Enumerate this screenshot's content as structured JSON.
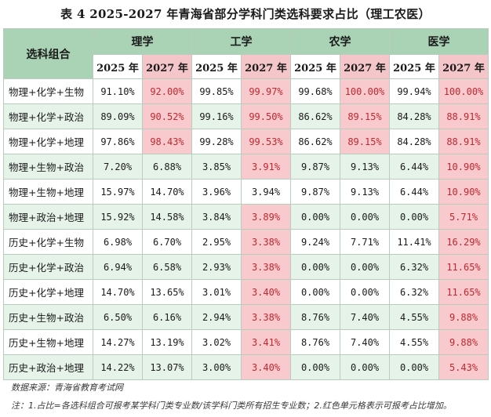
{
  "title": "表 4  2025-2027 年青海省部分学科门类选科要求占比（理工农医）",
  "header": {
    "combo_label": "选科组合",
    "subjects": [
      "理学",
      "工学",
      "农学",
      "医学"
    ],
    "years": [
      "2025 年",
      "2027 年"
    ]
  },
  "rows": [
    {
      "name": "物理+化学+生物",
      "values": [
        "91.10%",
        "92.00%",
        "99.85%",
        "99.97%",
        "99.68%",
        "100.00%",
        "99.94%",
        "100.00%"
      ],
      "highlight": [
        false,
        true,
        false,
        true,
        false,
        true,
        false,
        true
      ]
    },
    {
      "name": "物理+化学+政治",
      "values": [
        "89.09%",
        "90.52%",
        "99.16%",
        "99.50%",
        "86.62%",
        "89.15%",
        "84.28%",
        "88.91%"
      ],
      "highlight": [
        false,
        true,
        false,
        true,
        false,
        true,
        false,
        true
      ]
    },
    {
      "name": "物理+化学+地理",
      "values": [
        "97.86%",
        "98.43%",
        "99.28%",
        "99.53%",
        "86.62%",
        "89.15%",
        "84.28%",
        "88.91%"
      ],
      "highlight": [
        false,
        true,
        false,
        true,
        false,
        true,
        false,
        true
      ]
    },
    {
      "name": "物理+生物+政治",
      "values": [
        "7.20%",
        "6.88%",
        "3.85%",
        "3.91%",
        "9.87%",
        "9.13%",
        "6.44%",
        "10.90%"
      ],
      "highlight": [
        false,
        false,
        false,
        true,
        false,
        false,
        false,
        true
      ]
    },
    {
      "name": "物理+生物+地理",
      "values": [
        "15.97%",
        "14.70%",
        "3.96%",
        "3.94%",
        "9.87%",
        "9.13%",
        "6.44%",
        "10.90%"
      ],
      "highlight": [
        false,
        false,
        false,
        false,
        false,
        false,
        false,
        true
      ]
    },
    {
      "name": "物理+政治+地理",
      "values": [
        "15.92%",
        "14.58%",
        "3.84%",
        "3.89%",
        "0.00%",
        "0.00%",
        "0.00%",
        "5.71%"
      ],
      "highlight": [
        false,
        false,
        false,
        true,
        false,
        false,
        false,
        true
      ]
    },
    {
      "name": "历史+化学+生物",
      "values": [
        "6.98%",
        "6.70%",
        "2.95%",
        "3.38%",
        "9.24%",
        "7.71%",
        "11.41%",
        "16.29%"
      ],
      "highlight": [
        false,
        false,
        false,
        true,
        false,
        false,
        false,
        true
      ]
    },
    {
      "name": "历史+化学+政治",
      "values": [
        "6.94%",
        "6.58%",
        "2.93%",
        "3.38%",
        "0.00%",
        "0.00%",
        "6.32%",
        "11.65%"
      ],
      "highlight": [
        false,
        false,
        false,
        true,
        false,
        false,
        false,
        true
      ]
    },
    {
      "name": "历史+化学+地理",
      "values": [
        "14.70%",
        "13.65%",
        "3.01%",
        "3.40%",
        "0.00%",
        "0.00%",
        "6.32%",
        "11.65%"
      ],
      "highlight": [
        false,
        false,
        false,
        true,
        false,
        false,
        false,
        true
      ]
    },
    {
      "name": "历史+生物+政治",
      "values": [
        "6.50%",
        "6.16%",
        "2.94%",
        "3.38%",
        "8.76%",
        "7.40%",
        "4.55%",
        "9.88%"
      ],
      "highlight": [
        false,
        false,
        false,
        true,
        false,
        false,
        false,
        true
      ]
    },
    {
      "name": "历史+生物+地理",
      "values": [
        "14.27%",
        "13.19%",
        "3.02%",
        "3.41%",
        "8.76%",
        "7.40%",
        "4.55%",
        "9.88%"
      ],
      "highlight": [
        false,
        false,
        false,
        true,
        false,
        false,
        false,
        true
      ]
    },
    {
      "name": "历史+政治+地理",
      "values": [
        "14.22%",
        "13.07%",
        "3.00%",
        "3.40%",
        "0.00%",
        "0.00%",
        "0.00%",
        "5.43%"
      ],
      "highlight": [
        false,
        false,
        false,
        true,
        false,
        false,
        false,
        true
      ]
    }
  ],
  "source": "数据来源：青海省教育考试网",
  "note": "注：1.占比=各选科组合可报考某学科门类专业数/该学科门类所有招生专业数；2.红色单元格表示可报考占比增加。",
  "colors": {
    "header_green": "#a9d3b4",
    "row_shade": "#e6f3e9",
    "highlight_pink": "#f8c9cd",
    "highlight_text": "#c0292f"
  }
}
